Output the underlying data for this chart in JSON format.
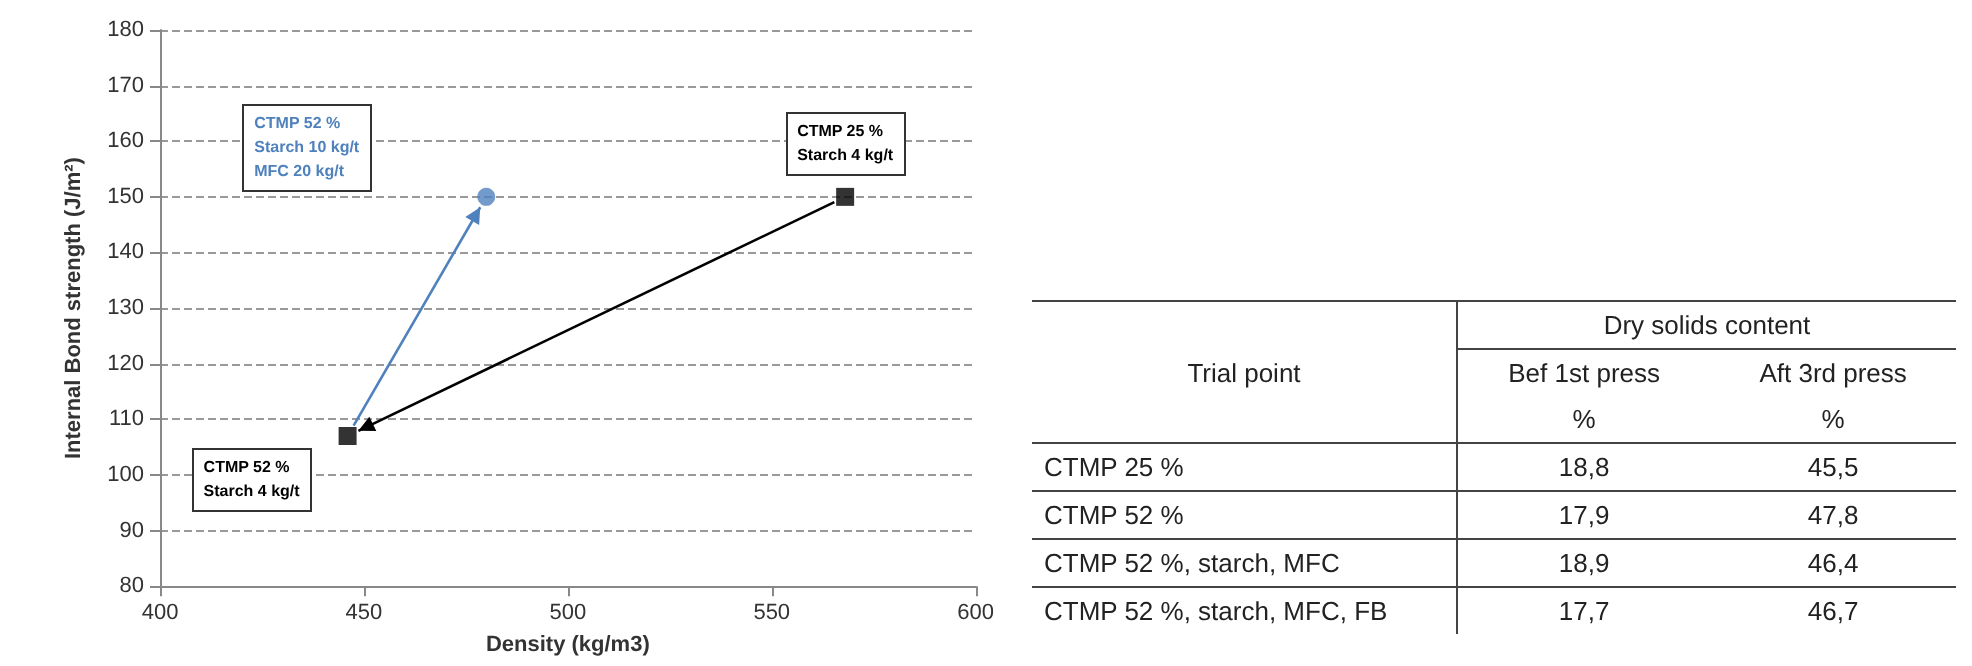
{
  "chart_data": [
    {
      "type": "scatter",
      "xlabel": "Density (kg/m3)",
      "ylabel": "Internal Bond strength (J/m²)",
      "xlim": [
        400,
        600
      ],
      "xticks": [
        400,
        450,
        500,
        550,
        600
      ],
      "ylim": [
        80,
        180
      ],
      "yticks": [
        80,
        90,
        100,
        110,
        120,
        130,
        140,
        150,
        160,
        170,
        180
      ],
      "grid": "y",
      "series": [
        {
          "type": "scatter",
          "marker": "square",
          "color": "#000000",
          "x": [
            446,
            568
          ],
          "values": [
            107,
            150
          ]
        },
        {
          "type": "scatter",
          "marker": "circle",
          "color": "#4f81bd",
          "x": [
            480
          ],
          "values": [
            150
          ]
        }
      ],
      "annotations": [
        "CTMP 52 %\nStarch 10 kg/t\nMFC 20 kg/t",
        "CTMP 25 %\nStarch 4 kg/t",
        "CTMP 52 %\nStarch 4 kg/t"
      ]
    },
    {
      "type": "other",
      "title": "Dry solids content",
      "xlabel": "Trial point",
      "ylabel": "%",
      "categories": [
        "CTMP 25 %",
        "CTMP 52 %",
        "CTMP 52 %, starch, MFC",
        "CTMP 52 %, starch, MFC, FB"
      ],
      "series": [
        {
          "name": "Bef 1st press",
          "values": [
            18.8,
            17.9,
            18.9,
            17.7
          ],
          "value_labels": [
            "18,8",
            "17,9",
            "18,9",
            "17,7"
          ]
        },
        {
          "name": "Aft 3rd press",
          "values": [
            45.5,
            47.8,
            46.4,
            46.7
          ],
          "value_labels": [
            "45,5",
            "47,8",
            "46,4",
            "46,7"
          ]
        }
      ]
    }
  ]
}
